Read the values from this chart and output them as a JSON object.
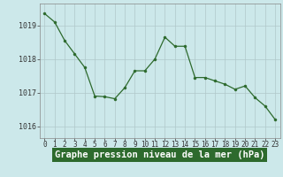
{
  "x": [
    0,
    1,
    2,
    3,
    4,
    5,
    6,
    7,
    8,
    9,
    10,
    11,
    12,
    13,
    14,
    15,
    16,
    17,
    18,
    19,
    20,
    21,
    22,
    23
  ],
  "y": [
    1019.35,
    1019.1,
    1018.55,
    1018.15,
    1017.75,
    1016.9,
    1016.88,
    1016.82,
    1017.15,
    1017.65,
    1017.65,
    1018.0,
    1018.65,
    1018.38,
    1018.38,
    1017.45,
    1017.45,
    1017.35,
    1017.25,
    1017.1,
    1017.2,
    1016.85,
    1016.6,
    1016.2
  ],
  "line_color": "#2d6a2d",
  "marker_color": "#2d6a2d",
  "bg_color": "#cce8ea",
  "grid_color": "#b0c8ca",
  "ylabel_ticks": [
    1016,
    1017,
    1018,
    1019
  ],
  "xlabel": "Graphe pression niveau de la mer (hPa)",
  "xlabel_bg": "#2d6a2d",
  "xlabel_color": "#ffffff",
  "ylim": [
    1015.65,
    1019.65
  ],
  "xlim": [
    -0.5,
    23.5
  ],
  "tick_fontsize": 5.5,
  "label_fontsize": 7.5
}
